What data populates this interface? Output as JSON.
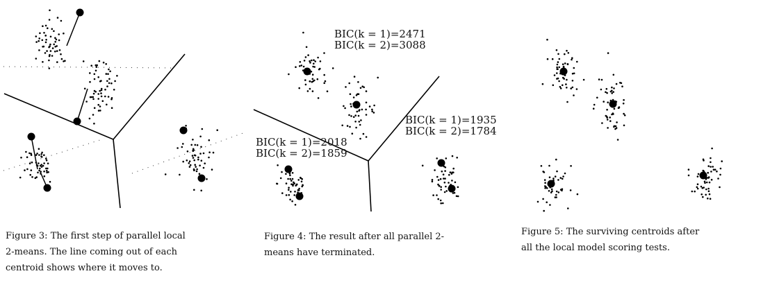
{
  "figures": [
    {
      "caption_lines": [
        "Figure 3: The first step of parallel local",
        "2-means.  The line coming out of each",
        "centroid shows where it moves to."
      ]
    },
    {
      "caption_lines": [
        "Figure 4: The result after all parallel 2-",
        "means have terminated."
      ],
      "bic_labels": [
        [
          "BIC(k = 1)=2471",
          "BIC(k = 2)=3088"
        ],
        [
          "BIC(k = 1)=1935",
          "BIC(k = 2)=1784"
        ],
        [
          "BIC(k = 1)=2018",
          "BIC(k = 2)=1859"
        ]
      ]
    },
    {
      "caption_lines": [
        "Figure 5:  The surviving centroids after",
        "all the local model scoring tests."
      ]
    }
  ]
}
